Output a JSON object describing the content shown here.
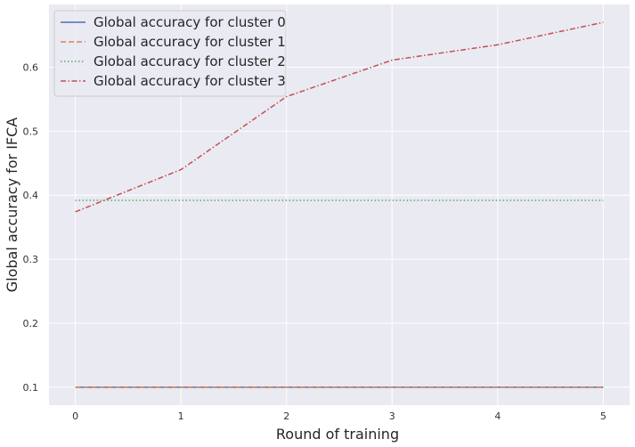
{
  "chart_data": {
    "type": "line",
    "title": "",
    "xlabel": "Round of training",
    "ylabel": "Global accuracy for IFCA",
    "x": [
      0,
      1,
      2,
      3,
      4,
      5
    ],
    "xlim": [
      -0.25,
      5.25
    ],
    "ylim": [
      0.072,
      0.698
    ],
    "xticks": [
      "0",
      "1",
      "2",
      "3",
      "4",
      "5"
    ],
    "yticks": [
      "0.1",
      "0.2",
      "0.3",
      "0.4",
      "0.5",
      "0.6"
    ],
    "ytick_values": [
      0.1,
      0.2,
      0.3,
      0.4,
      0.5,
      0.6
    ],
    "grid": true,
    "legend_position": "top-left",
    "series": [
      {
        "name": "Global accuracy for cluster 0",
        "values": [
          0.1,
          0.1,
          0.1,
          0.1,
          0.1,
          0.1
        ],
        "color": "#4c72b0",
        "style": "solid"
      },
      {
        "name": "Global accuracy for cluster 1",
        "values": [
          0.1,
          0.1,
          0.1,
          0.1,
          0.1,
          0.1
        ],
        "color": "#dd8452",
        "style": "dashed"
      },
      {
        "name": "Global accuracy for cluster 2",
        "values": [
          0.392,
          0.392,
          0.392,
          0.392,
          0.392,
          0.392
        ],
        "color": "#55a868",
        "style": "dotted"
      },
      {
        "name": "Global accuracy for cluster 3",
        "values": [
          0.374,
          0.44,
          0.554,
          0.611,
          0.635,
          0.67
        ],
        "color": "#c44e52",
        "style": "dashdot"
      }
    ]
  }
}
